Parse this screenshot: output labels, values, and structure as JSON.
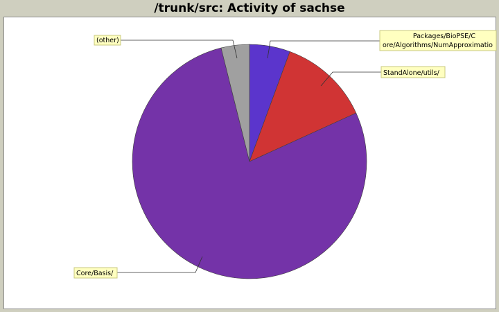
{
  "chart_data": {
    "type": "pie",
    "title": "/trunk/src: Activity of sachse",
    "slices": [
      {
        "label_lines": [
          "Packages/BioPSE/C",
          "ore/Algorithms/NumApproximatio"
        ],
        "value": 5.6,
        "color": "#5b35cc"
      },
      {
        "label_lines": [
          "StandAlone/utils/"
        ],
        "value": 12.6,
        "color": "#d03434"
      },
      {
        "label_lines": [
          "Core/Basis/"
        ],
        "value": 77.9,
        "color": "#7433a8"
      },
      {
        "label_lines": [
          "(other)"
        ],
        "value": 3.9,
        "color": "#a0a0a0"
      }
    ],
    "start_angle_deg": 90,
    "direction": "clockwise"
  }
}
